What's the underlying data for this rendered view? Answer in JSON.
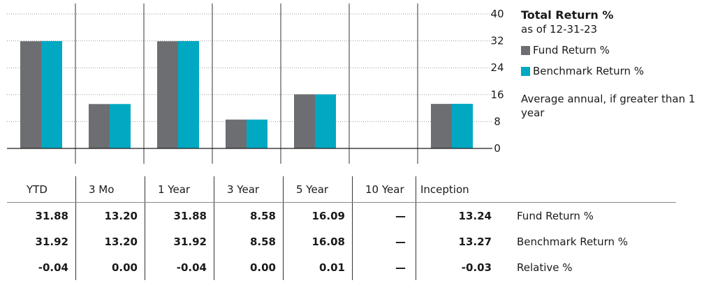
{
  "chart_data": {
    "type": "bar",
    "title": "Total Return %",
    "subtitle": "as of 12-31-23",
    "categories": [
      "YTD",
      "3 Mo",
      "1 Year",
      "3 Year",
      "5 Year",
      "10 Year",
      "Inception"
    ],
    "series": [
      {
        "name": "Fund Return %",
        "values": [
          31.88,
          13.2,
          31.88,
          8.58,
          16.09,
          null,
          13.24
        ]
      },
      {
        "name": "Benchmark Return %",
        "values": [
          31.92,
          13.2,
          31.92,
          8.58,
          16.08,
          null,
          13.27
        ]
      }
    ],
    "ylim": [
      0,
      40
    ],
    "yticks": [
      "40",
      "32",
      "24",
      "16",
      "8",
      "0"
    ],
    "y_axis_position": "right",
    "grid": true,
    "legend_position": "right",
    "note": "Average annual, if greater than 1 year"
  },
  "colors": {
    "fund": "#6d6e71",
    "benchmark": "#00a8c2"
  },
  "table": {
    "headers": [
      "YTD",
      "3 Mo",
      "1 Year",
      "3 Year",
      "5 Year",
      "10 Year",
      "Inception"
    ],
    "rows": [
      {
        "label": "Fund Return %",
        "values": [
          "31.88",
          "13.20",
          "31.88",
          "8.58",
          "16.09",
          "—",
          "13.24"
        ]
      },
      {
        "label": "Benchmark Return %",
        "values": [
          "31.92",
          "13.20",
          "31.92",
          "8.58",
          "16.08",
          "—",
          "13.27"
        ]
      },
      {
        "label": "Relative %",
        "values": [
          "-0.04",
          "0.00",
          "-0.04",
          "0.00",
          "0.01",
          "—",
          "-0.03"
        ]
      }
    ]
  }
}
